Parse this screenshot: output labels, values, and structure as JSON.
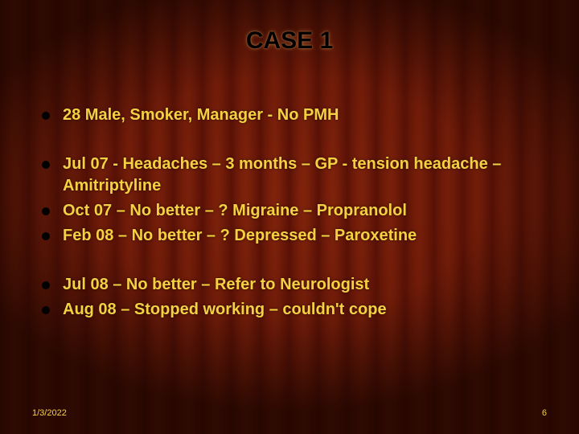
{
  "slide": {
    "title": "CASE 1",
    "groups": [
      {
        "items": [
          "28 Male, Smoker, Manager - No PMH"
        ]
      },
      {
        "items": [
          "Jul 07 - Headaches – 3 months – GP -  tension headache – Amitriptyline",
          "Oct 07 – No better – ? Migraine – Propranolol",
          "Feb 08 – No better – ? Depressed – Paroxetine"
        ]
      },
      {
        "items": [
          "Jul 08 – No better – Refer to Neurologist",
          "Aug 08 – Stopped working – couldn't cope"
        ]
      }
    ],
    "footer_date": "1/3/2022",
    "slide_number": "6",
    "colors": {
      "title_color": "#000000",
      "text_color": "#f5d142",
      "bullet_color": "#000000"
    }
  }
}
